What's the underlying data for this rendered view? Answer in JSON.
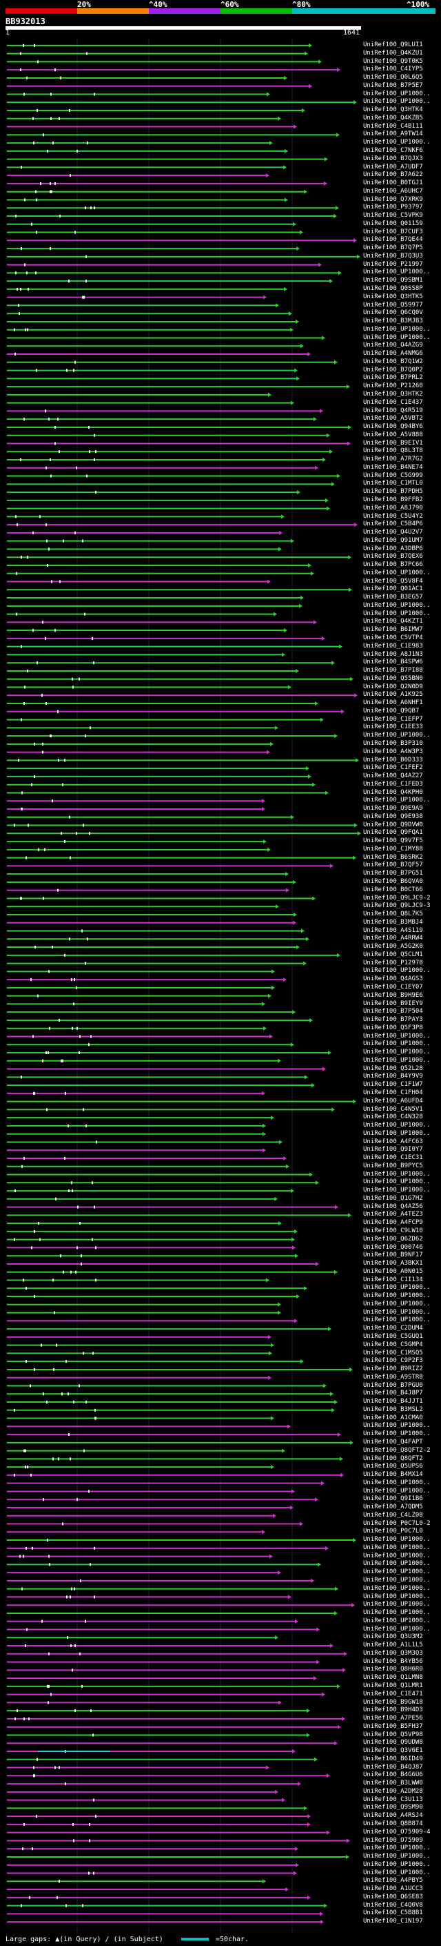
{
  "scale": {
    "ticks": [
      "20%",
      "^40%",
      "^60%",
      "^80%",
      "^100%"
    ],
    "colors": [
      "#e00000",
      "#ff7f00",
      "#a020f0",
      "#00c000",
      "#00bfbf"
    ]
  },
  "query": {
    "id": "BB932013",
    "start": "1",
    "end": "1641"
  },
  "hit_colors": {
    "green": "#33cc33",
    "magenta": "#cc33cc",
    "cyan": "#33cccc"
  },
  "hits": [
    "UniRef100_Q9LUI1",
    "UniRef100_Q4KZU1",
    "UniRef100_Q9T0K5",
    "UniRef100_C4IYP5",
    "UniRef100_Q0L6Q5",
    "UniRef100_B7P5E7",
    "UniRef100_UP1000..",
    "UniRef100_UP1000..",
    "UniRef100_Q3HTK4",
    "UniRef100_Q4KZB5",
    "UniRef100_C4B111",
    "UniRef100_A9TW14",
    "UniRef100_UP1000..",
    "UniRef100_C7NKF6",
    "UniRef100_B7QJX3",
    "UniRef100_A7UDF7",
    "UniRef100_B7A622",
    "UniRef100_B0TGJ1",
    "UniRef100_A6UHC7",
    "UniRef100_Q7XRK9",
    "UniRef100_P93797",
    "UniRef100_C5VPK9",
    "UniRef100_Q01159",
    "UniRef100_B7CUF3",
    "UniRef100_B7QE44",
    "UniRef100_B7Q7P5",
    "UniRef100_B7Q3U3",
    "UniRef100_P21997",
    "UniRef100_UP1000..",
    "UniRef100_Q9SBM1",
    "UniRef100_Q0SS8P",
    "UniRef100_Q3HTK5",
    "UniRef100_Q59977",
    "UniRef100_Q6CQ0V",
    "UniRef100_B3MJB3",
    "UniRef100_UP1000..",
    "UniRef100_UP1000..",
    "UniRef100_Q4AZG9",
    "UniRef100_A4NMG6",
    "UniRef100_B7Q1W2",
    "UniRef100_B7Q0P2",
    "UniRef100_B7PRL2",
    "UniRef100_P21260",
    "UniRef100_Q3HTK2",
    "UniRef100_C1E437",
    "UniRef100_Q4R519",
    "UniRef100_A5VBT2",
    "UniRef100_Q94BY6",
    "UniRef100_A5V888",
    "UniRef100_B9EIV1",
    "UniRef100_Q8L3T8",
    "UniRef100_A7R7G2",
    "UniRef100_B4NE74",
    "UniRef100_C5G999",
    "UniRef100_C1MTL0",
    "UniRef100_B7PDH5",
    "UniRef100_B9FFB2",
    "UniRef100_A8J790",
    "UniRef100_C5U4Y2",
    "UniRef100_C5B4P6",
    "UniRef100_Q4U2V7",
    "UniRef100_Q91UM7",
    "UniRef100_A3DBP6",
    "UniRef100_B7QEX6",
    "UniRef100_B7PC66",
    "UniRef100_UP1000..",
    "UniRef100_Q5V8F4",
    "UniRef100_Q01AC1",
    "UniRef100_B3EG57",
    "UniRef100_UP1000..",
    "UniRef100_UP1000..",
    "UniRef100_Q4KZT1",
    "UniRef100_B6IMW7",
    "UniRef100_C5VTP4",
    "UniRef100_C1E983",
    "UniRef100_A8J1N3",
    "UniRef100_B4SPW6",
    "UniRef100_B7PI88",
    "UniRef100_Q55BN0",
    "UniRef100_Q2N0D9",
    "UniRef100_A1K925",
    "UniRef100_A6NHF1",
    "UniRef100_Q9QB7",
    "UniRef100_C1EFP7",
    "UniRef100_C1EE33",
    "UniRef100_UP1000..",
    "UniRef100_B3P310",
    "UniRef100_A4W3P3",
    "UniRef100_B0D333",
    "UniRef100_C1FEF2",
    "UniRef100_Q4AZ27",
    "UniRef100_C1FED3",
    "UniRef100_Q4KPH0",
    "UniRef100_UP1000..",
    "UniRef100_Q9E9A9",
    "UniRef100_Q9E938",
    "UniRef100_Q9DVW0",
    "UniRef100_Q9FQA1",
    "UniRef100_Q9V7F5",
    "UniRef100_C1MY88",
    "UniRef100_B6SRK2",
    "UniRef100_B7QF57",
    "UniRef100_B7PG51",
    "UniRef100_B6QVA0",
    "UniRef100_B0CT66",
    "UniRef100_Q9LJC9-2",
    "UniRef100_Q9LJC9-3",
    "UniRef100_Q8L7K5",
    "UniRef100_B3MBJ4",
    "UniRef100_A4S119",
    "UniRef100_A4RRW4",
    "UniRef100_A5G2K0",
    "UniRef100_Q5CLM1",
    "UniRef100_P12978",
    "UniRef100_UP1000..",
    "UniRef100_Q4AGS3",
    "UniRef100_C1EY07",
    "UniRef100_B9H9E6",
    "UniRef100_B9IEY9",
    "UniRef100_B7P504",
    "UniRef100_B7PAY3",
    "UniRef100_Q5F3P8",
    "UniRef100_UP1000..",
    "UniRef100_UP1000..",
    "UniRef100_UP1000..",
    "UniRef100_UP1000..",
    "UniRef100_Q52L28",
    "UniRef100_B4Y9V9",
    "UniRef100_C1F1W7",
    "UniRef100_C1FH04",
    "UniRef100_A6UFD4",
    "UniRef100_C4N5V1",
    "UniRef100_C4N328",
    "UniRef100_UP1000..",
    "UniRef100_UP1000..",
    "UniRef100_A4FC63",
    "UniRef100_Q9I0Y7",
    "UniRef100_C1EC31",
    "UniRef100_B9PYC5",
    "UniRef100_UP1000..",
    "UniRef100_UP1000..",
    "UniRef100_UP1000..",
    "UniRef100_Q1G7H2",
    "UniRef100_Q4AZ56",
    "UniRef100_A4TEZ3",
    "UniRef100_A4FCP9",
    "UniRef100_C9LW10",
    "UniRef100_Q6ZD62",
    "UniRef100_Q00746",
    "UniRef100_B9NF17",
    "UniRef100_A3BKX1",
    "UniRef100_A0N015",
    "UniRef100_C1I134",
    "UniRef100_UP1000..",
    "UniRef100_UP1000..",
    "UniRef100_UP1000..",
    "UniRef100_UP1000..",
    "UniRef100_UP1000..",
    "UniRef100_C2DUM4",
    "UniRef100_C5GUQ1",
    "UniRef100_C5GMP4",
    "UniRef100_C1MSQ5",
    "UniRef100_C9P2F3",
    "UniRef100_B9RIZ2",
    "UniRef100_A9STR8",
    "UniRef100_B7PGU0",
    "UniRef100_B4J8P7",
    "UniRef100_B4JJT1",
    "UniRef100_B3MSL2",
    "UniRef100_A1CMA0",
    "UniRef100_UP1000..",
    "UniRef100_UP1000..",
    "UniRef100_Q4FAPT",
    "UniRef100_Q8QFT2-2",
    "UniRef100_Q8QFT2",
    "UniRef100_Q5UPS6",
    "UniRef100_B4MX14",
    "UniRef100_UP1000..",
    "UniRef100_UP1000..",
    "UniRef100_Q9I1B6",
    "UniRef100_A7QDM5",
    "UniRef100_C4LZ08",
    "UniRef100_P0C7L0-2",
    "UniRef100_P0C7L0",
    "UniRef100_UP1000..",
    "UniRef100_UP1000..",
    "UniRef100_UP1000..",
    "UniRef100_UP1000..",
    "UniRef100_UP1000..",
    "UniRef100_UP1000..",
    "UniRef100_UP1000..",
    "UniRef100_UP1000..",
    "UniRef100_UP1000..",
    "UniRef100_UP1000..",
    "UniRef100_UP1000..",
    "UniRef100_UP1000..",
    "UniRef100_Q3U3M2",
    "UniRef100_A1L1L5",
    "UniRef100_Q3M3Q3",
    "UniRef100_B4YB56",
    "UniRef100_Q8H6R0",
    "UniRef100_Q1LMN8",
    "UniRef100_Q1LMR1",
    "UniRef100_C1E471",
    "UniRef100_B9GW18",
    "UniRef100_B9H4D3",
    "UniRef100_A7PE56",
    "UniRef100_B5FH37",
    "UniRef100_Q5VP98",
    "UniRef100_Q9UDW8",
    "UniRef100_Q3V6E1",
    "UniRef100_B6ID49",
    "UniRef100_B4QJ87",
    "UniRef100_B4G6U6",
    "UniRef100_B3LWW0",
    "UniRef100_A2DM28",
    "UniRef100_C3U113",
    "UniRef100_Q9SM90",
    "UniRef100_A4RSJ4",
    "UniRef100_Q8B874",
    "UniRef100_O75909-4",
    "UniRef100_O75909",
    "UniRef100_UP1000..",
    "UniRef100_UP1000..",
    "UniRef100_UP1000..",
    "UniRef100_UP1000..",
    "UniRef100_A4PBY5",
    "UniRef100_A1UCC3",
    "UniRef100_Q6SE83",
    "UniRef100_C4Q0V8",
    "UniRef100_C5B8B1",
    "UniRef100_C1N197"
  ],
  "footer": {
    "large_gaps": "Large gaps:",
    "query_mark": "▲(in Query)",
    "subject_mark": "/ (in Subject)",
    "legend": "=50char."
  }
}
